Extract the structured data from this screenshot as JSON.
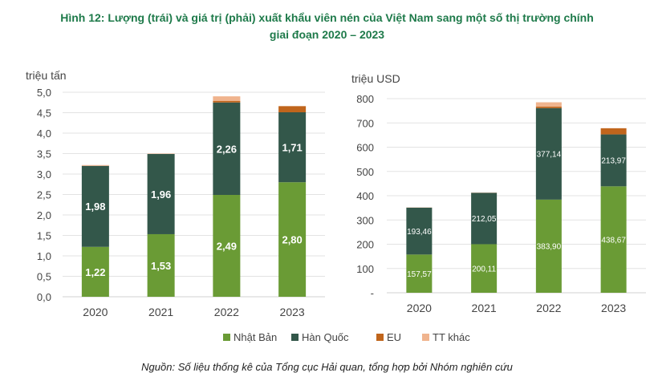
{
  "figure": {
    "title_line1": "Hình 12: Lượng (trái) và giá trị (phải) xuất khẩu viên nén của Việt Nam sang một số thị trường chính",
    "title_line2": "giai đoạn 2020 – 2023",
    "source": "Nguồn: Số liệu thống kê của Tổng cục Hải quan, tổng hợp bởi Nhóm nghiên cứu"
  },
  "colors": {
    "japan": "#6a9b35",
    "korea": "#33574a",
    "eu": "#c0651c",
    "other": "#f0b48e",
    "grid": "#e3e3e3",
    "text": "#444444"
  },
  "legend": [
    {
      "key": "japan",
      "label": "Nhật Bản"
    },
    {
      "key": "korea",
      "label": "Hàn Quốc"
    },
    {
      "key": "eu",
      "label": "EU"
    },
    {
      "key": "other",
      "label": "TT khác"
    }
  ],
  "chart_data": [
    {
      "type": "bar",
      "stacked": true,
      "unit_label": "triệu tấn",
      "categories": [
        "2020",
        "2021",
        "2022",
        "2023"
      ],
      "ylim": [
        0,
        5
      ],
      "yticks": [
        0,
        0.5,
        1,
        1.5,
        2,
        2.5,
        3,
        3.5,
        4,
        4.5,
        5
      ],
      "ytick_labels": [
        "0,0",
        "0,5",
        "1,0",
        "1,5",
        "2,0",
        "2,5",
        "3,0",
        "3,5",
        "4,0",
        "4,5",
        "5,0"
      ],
      "grid": true,
      "series": [
        {
          "name": "Nhật Bản",
          "key": "japan",
          "values": [
            1.22,
            1.53,
            2.49,
            2.8
          ],
          "labels": [
            "1,22",
            "1,53",
            "2,49",
            "2,80"
          ]
        },
        {
          "name": "Hàn Quốc",
          "key": "korea",
          "values": [
            1.98,
            1.96,
            2.26,
            1.71
          ],
          "labels": [
            "1,98",
            "1,96",
            "2,26",
            "1,71"
          ]
        },
        {
          "name": "EU",
          "key": "eu",
          "values": [
            0.0,
            0.0,
            0.04,
            0.15
          ],
          "labels": [
            "",
            "",
            "",
            ""
          ]
        },
        {
          "name": "TT khác",
          "key": "other",
          "values": [
            0.02,
            0.01,
            0.11,
            0.0
          ],
          "labels": [
            "",
            "",
            "",
            ""
          ]
        }
      ]
    },
    {
      "type": "bar",
      "stacked": true,
      "unit_label": "triệu USD",
      "categories": [
        "2020",
        "2021",
        "2022",
        "2023"
      ],
      "ylim": [
        0,
        800
      ],
      "yticks": [
        0,
        100,
        200,
        300,
        400,
        500,
        600,
        700,
        800
      ],
      "ytick_labels": [
        "-",
        "100",
        "200",
        "300",
        "400",
        "500",
        "600",
        "700",
        "800"
      ],
      "grid": true,
      "series": [
        {
          "name": "Nhật Bản",
          "key": "japan",
          "values": [
            157.57,
            200.11,
            383.9,
            438.67
          ],
          "labels": [
            "157,57",
            "200,11",
            "383,90",
            "438,67"
          ]
        },
        {
          "name": "Hàn Quốc",
          "key": "korea",
          "values": [
            193.46,
            212.05,
            377.14,
            213.97
          ],
          "labels": [
            "193,46",
            "212,05",
            "377,14",
            "213,97"
          ]
        },
        {
          "name": "EU",
          "key": "eu",
          "values": [
            0.0,
            0.0,
            6.0,
            25.0
          ],
          "labels": [
            "",
            "",
            "",
            ""
          ]
        },
        {
          "name": "TT khác",
          "key": "other",
          "values": [
            1.0,
            1.0,
            18.0,
            1.0
          ],
          "labels": [
            "",
            "",
            "",
            ""
          ]
        }
      ]
    }
  ]
}
